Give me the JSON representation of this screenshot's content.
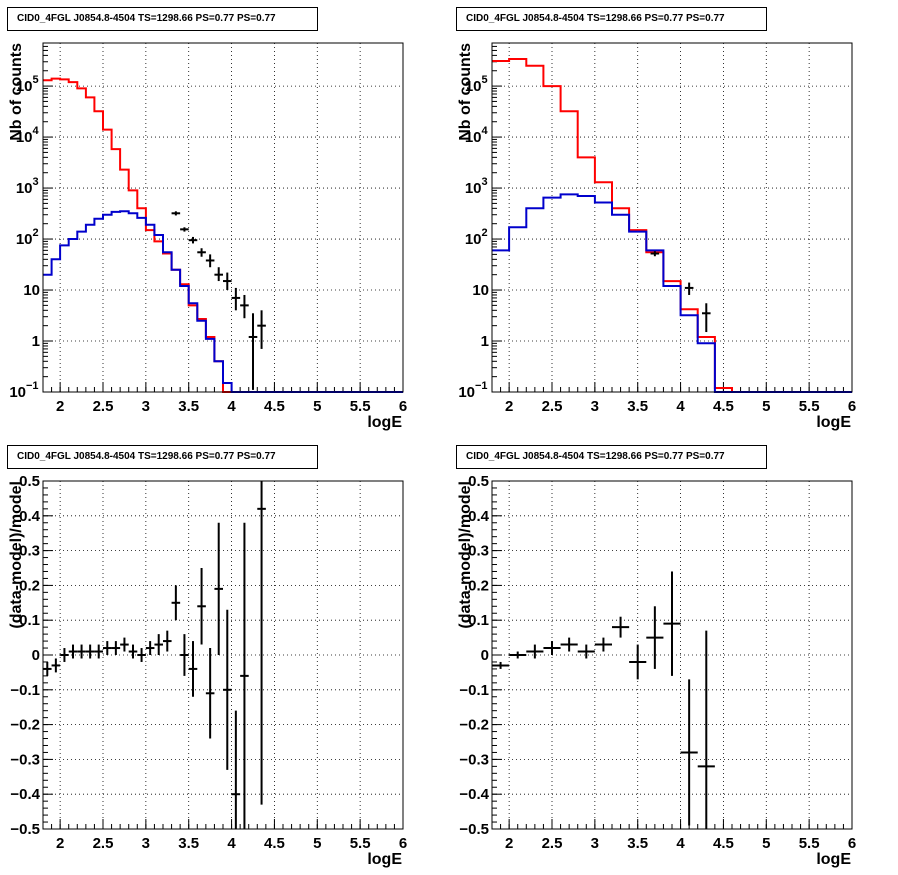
{
  "panels": [
    {
      "title": "CID0_4FGL J0854.8-4504 TS=1298.66 PS=0.77 PS=0.77",
      "chart_data": {
        "type": "line",
        "scale": "log",
        "xlabel": "logE",
        "ylabel": "Nb of counts",
        "xlim": [
          1.8,
          6.0
        ],
        "ylim": [
          0.1,
          700000
        ],
        "xticks": [
          "2",
          "2.5",
          "3",
          "3.5",
          "4",
          "4.5",
          "5",
          "5.5",
          "6"
        ],
        "yticks": [
          {
            "v": 0.1,
            "label": "10",
            "exp": "−1"
          },
          {
            "v": 1,
            "label": "1"
          },
          {
            "v": 10,
            "label": "10"
          },
          {
            "v": 100,
            "label": "10",
            "exp": "2"
          },
          {
            "v": 1000,
            "label": "10",
            "exp": "3"
          },
          {
            "v": 10000,
            "label": "10",
            "exp": "4"
          },
          {
            "v": 100000,
            "label": "10",
            "exp": "5"
          }
        ],
        "grid": true,
        "series": [
          {
            "color": "#ff0000",
            "width": 2,
            "edges_from": 1.8,
            "bin_width": 0.1,
            "values": [
              130000,
              140000,
              135000,
              120000,
              90000,
              60000,
              32000,
              14000,
              5800,
              2300,
              900,
              400,
              150,
              90,
              52,
              25,
              13,
              5,
              2.7,
              1.2,
              0.4,
              0.1,
              0.1,
              0.1,
              0.1,
              0.1,
              0.1,
              0.1,
              0.1,
              0.1,
              0.1,
              0.1,
              0.1,
              0.1,
              0.1,
              0.1,
              0.1,
              0.1,
              0.1,
              0.1,
              0.1,
              0.1
            ]
          },
          {
            "color": "#0000cc",
            "width": 2,
            "edges_from": 1.8,
            "bin_width": 0.1,
            "values": [
              20,
              40,
              75,
              100,
              140,
              190,
              250,
              300,
              340,
              350,
              320,
              260,
              190,
              120,
              55,
              25,
              12,
              5.5,
              2.5,
              1.1,
              0.4,
              0.15,
              0.1,
              0.1,
              0.1,
              0.1,
              0.1,
              0.1,
              0.1,
              0.1,
              0.1,
              0.1,
              0.1,
              0.1,
              0.1,
              0.1,
              0.1,
              0.1,
              0.1,
              0.1,
              0.1,
              0.1
            ]
          }
        ],
        "points": [
          {
            "x": 3.35,
            "y": 320,
            "lo": 290,
            "hi": 350
          },
          {
            "x": 3.45,
            "y": 155,
            "lo": 140,
            "hi": 170
          },
          {
            "x": 3.55,
            "y": 95,
            "lo": 82,
            "hi": 110
          },
          {
            "x": 3.65,
            "y": 55,
            "lo": 45,
            "hi": 66
          },
          {
            "x": 3.75,
            "y": 38,
            "lo": 28,
            "hi": 50
          },
          {
            "x": 3.85,
            "y": 20,
            "lo": 15,
            "hi": 28
          },
          {
            "x": 3.95,
            "y": 15,
            "lo": 10,
            "hi": 22
          },
          {
            "x": 4.05,
            "y": 7,
            "lo": 4,
            "hi": 11
          },
          {
            "x": 4.15,
            "y": 5,
            "lo": 2.8,
            "hi": 8
          },
          {
            "x": 4.25,
            "y": 1.2,
            "lo": 0.11,
            "hi": 3.5
          },
          {
            "x": 4.35,
            "y": 2,
            "lo": 0.7,
            "hi": 4
          }
        ]
      }
    },
    {
      "title": "CID0_4FGL J0854.8-4504 TS=1298.66 PS=0.77 PS=0.77",
      "chart_data": {
        "type": "line",
        "scale": "log",
        "xlabel": "logE",
        "ylabel": "Nb of counts",
        "xlim": [
          1.8,
          6.0
        ],
        "ylim": [
          0.1,
          700000
        ],
        "xticks": [
          "2",
          "2.5",
          "3",
          "3.5",
          "4",
          "4.5",
          "5",
          "5.5",
          "6"
        ],
        "yticks": [
          {
            "v": 0.1,
            "label": "10",
            "exp": "−1"
          },
          {
            "v": 1,
            "label": "1"
          },
          {
            "v": 10,
            "label": "10"
          },
          {
            "v": 100,
            "label": "10",
            "exp": "2"
          },
          {
            "v": 1000,
            "label": "10",
            "exp": "3"
          },
          {
            "v": 10000,
            "label": "10",
            "exp": "4"
          },
          {
            "v": 100000,
            "label": "10",
            "exp": "5"
          }
        ],
        "grid": true,
        "series": [
          {
            "color": "#ff0000",
            "width": 2,
            "edges_from": 1.8,
            "bin_width": 0.2,
            "values": [
              310000,
              340000,
              250000,
              100000,
              32000,
              4000,
              1300,
              400,
              150,
              55,
              15,
              4.2,
              1.2,
              0.12,
              0.1,
              0.1,
              0.1,
              0.1,
              0.1,
              0.1,
              0.1
            ]
          },
          {
            "color": "#0000cc",
            "width": 2,
            "edges_from": 1.8,
            "bin_width": 0.2,
            "values": [
              60,
              170,
              400,
              650,
              750,
              700,
              520,
              300,
              140,
              60,
              12,
              3.2,
              0.9,
              0.1,
              0.1,
              0.1,
              0.1,
              0.1,
              0.1,
              0.1,
              0.1
            ]
          }
        ],
        "points": [
          {
            "x": 3.7,
            "y": 52,
            "lo": 46,
            "hi": 58
          },
          {
            "x": 4.1,
            "y": 11,
            "lo": 8,
            "hi": 14
          },
          {
            "x": 4.3,
            "y": 3.5,
            "lo": 1.5,
            "hi": 5.5
          }
        ]
      }
    },
    {
      "title": "CID0_4FGL J0854.8-4504 TS=1298.66 PS=0.77 PS=0.77",
      "chart_data": {
        "type": "scatter",
        "scale": "linear",
        "xlabel": "logE",
        "ylabel": "(data-model)/model",
        "xlim": [
          1.8,
          6.0
        ],
        "ylim": [
          -0.5,
          0.5
        ],
        "xticks": [
          "2",
          "2.5",
          "3",
          "3.5",
          "4",
          "4.5",
          "5",
          "5.5",
          "6"
        ],
        "yticks": [
          {
            "v": -0.5,
            "label": "−0.5"
          },
          {
            "v": -0.4,
            "label": "−0.4"
          },
          {
            "v": -0.3,
            "label": "−0.3"
          },
          {
            "v": -0.2,
            "label": "−0.2"
          },
          {
            "v": -0.1,
            "label": "−0.1"
          },
          {
            "v": 0,
            "label": "0"
          },
          {
            "v": 0.1,
            "label": "0.1"
          },
          {
            "v": 0.2,
            "label": "0.2"
          },
          {
            "v": 0.3,
            "label": "0.3"
          },
          {
            "v": 0.4,
            "label": "0.4"
          },
          {
            "v": 0.5,
            "label": "0.5"
          }
        ],
        "grid": true,
        "xerr": 0.05,
        "points": [
          {
            "x": 1.85,
            "y": -0.04,
            "err": 0.02
          },
          {
            "x": 1.95,
            "y": -0.03,
            "err": 0.02
          },
          {
            "x": 2.05,
            "y": 0.0,
            "err": 0.02
          },
          {
            "x": 2.15,
            "y": 0.01,
            "err": 0.02
          },
          {
            "x": 2.25,
            "y": 0.01,
            "err": 0.02
          },
          {
            "x": 2.35,
            "y": 0.01,
            "err": 0.02
          },
          {
            "x": 2.45,
            "y": 0.01,
            "err": 0.02
          },
          {
            "x": 2.55,
            "y": 0.02,
            "err": 0.02
          },
          {
            "x": 2.65,
            "y": 0.02,
            "err": 0.02
          },
          {
            "x": 2.75,
            "y": 0.03,
            "err": 0.02
          },
          {
            "x": 2.85,
            "y": 0.01,
            "err": 0.02
          },
          {
            "x": 2.95,
            "y": 0.0,
            "err": 0.02
          },
          {
            "x": 3.05,
            "y": 0.02,
            "err": 0.02
          },
          {
            "x": 3.15,
            "y": 0.03,
            "err": 0.03
          },
          {
            "x": 3.25,
            "y": 0.04,
            "err": 0.03
          },
          {
            "x": 3.35,
            "y": 0.15,
            "err": 0.05
          },
          {
            "x": 3.45,
            "y": 0.0,
            "err": 0.06
          },
          {
            "x": 3.55,
            "y": -0.04,
            "err": 0.08
          },
          {
            "x": 3.65,
            "y": 0.14,
            "err": 0.11
          },
          {
            "x": 3.75,
            "y": -0.11,
            "err": 0.13
          },
          {
            "x": 3.85,
            "y": 0.19,
            "err": 0.19
          },
          {
            "x": 3.95,
            "y": -0.1,
            "err": 0.23
          },
          {
            "x": 4.05,
            "y": -0.4,
            "err": 0.24
          },
          {
            "x": 4.15,
            "y": -0.06,
            "err": 0.44
          },
          {
            "x": 4.35,
            "y": 0.42,
            "err": 0.85
          }
        ]
      }
    },
    {
      "title": "CID0_4FGL J0854.8-4504 TS=1298.66 PS=0.77 PS=0.77",
      "chart_data": {
        "type": "scatter",
        "scale": "linear",
        "xlabel": "logE",
        "ylabel": "(data-model)/model",
        "xlim": [
          1.8,
          6.0
        ],
        "ylim": [
          -0.5,
          0.5
        ],
        "xticks": [
          "2",
          "2.5",
          "3",
          "3.5",
          "4",
          "4.5",
          "5",
          "5.5",
          "6"
        ],
        "yticks": [
          {
            "v": -0.5,
            "label": "−0.5"
          },
          {
            "v": -0.4,
            "label": "−0.4"
          },
          {
            "v": -0.3,
            "label": "−0.3"
          },
          {
            "v": -0.2,
            "label": "−0.2"
          },
          {
            "v": -0.1,
            "label": "−0.1"
          },
          {
            "v": 0,
            "label": "0"
          },
          {
            "v": 0.1,
            "label": "0.1"
          },
          {
            "v": 0.2,
            "label": "0.2"
          },
          {
            "v": 0.3,
            "label": "0.3"
          },
          {
            "v": 0.4,
            "label": "0.4"
          },
          {
            "v": 0.5,
            "label": "0.5"
          }
        ],
        "grid": true,
        "xerr": 0.1,
        "points": [
          {
            "x": 1.9,
            "y": -0.03,
            "err": 0.01
          },
          {
            "x": 2.1,
            "y": 0.0,
            "err": 0.01
          },
          {
            "x": 2.3,
            "y": 0.01,
            "err": 0.02
          },
          {
            "x": 2.5,
            "y": 0.02,
            "err": 0.02
          },
          {
            "x": 2.7,
            "y": 0.03,
            "err": 0.02
          },
          {
            "x": 2.9,
            "y": 0.01,
            "err": 0.02
          },
          {
            "x": 3.1,
            "y": 0.03,
            "err": 0.02
          },
          {
            "x": 3.3,
            "y": 0.08,
            "err": 0.03
          },
          {
            "x": 3.5,
            "y": -0.02,
            "err": 0.05
          },
          {
            "x": 3.7,
            "y": 0.05,
            "err": 0.09
          },
          {
            "x": 3.9,
            "y": 0.09,
            "err": 0.15
          },
          {
            "x": 4.1,
            "y": -0.28,
            "err": 0.21
          },
          {
            "x": 4.3,
            "y": -0.32,
            "err": 0.39
          }
        ]
      }
    }
  ]
}
